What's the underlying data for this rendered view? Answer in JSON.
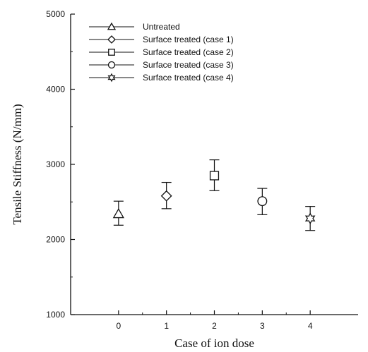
{
  "chart_data": {
    "type": "scatter",
    "title": "",
    "xlabel": "Case of ion dose",
    "ylabel": "Tensile Stiffness (N/mm)",
    "xlim": [
      -1,
      5
    ],
    "ylim": [
      1000,
      5000
    ],
    "xticks": [
      0,
      1,
      2,
      3,
      4
    ],
    "yticks": [
      1000,
      2000,
      3000,
      4000,
      5000
    ],
    "grid": false,
    "legend_position": "top-left",
    "series": [
      {
        "name": "Untreated",
        "marker": "triangle",
        "x": [
          0
        ],
        "y": [
          2340
        ],
        "err_low": [
          2190
        ],
        "err_high": [
          2510
        ]
      },
      {
        "name": "Surface treated (case 1)",
        "marker": "diamond",
        "x": [
          1
        ],
        "y": [
          2580
        ],
        "err_low": [
          2410
        ],
        "err_high": [
          2760
        ]
      },
      {
        "name": "Surface treated (case 2)",
        "marker": "square",
        "x": [
          2
        ],
        "y": [
          2850
        ],
        "err_low": [
          2650
        ],
        "err_high": [
          3060
        ]
      },
      {
        "name": "Surface treated (case 3)",
        "marker": "circle",
        "x": [
          3
        ],
        "y": [
          2510
        ],
        "err_low": [
          2330
        ],
        "err_high": [
          2680
        ]
      },
      {
        "name": "Surface treated (case 4)",
        "marker": "star",
        "x": [
          4
        ],
        "y": [
          2280
        ],
        "err_low": [
          2120
        ],
        "err_high": [
          2440
        ]
      }
    ]
  }
}
